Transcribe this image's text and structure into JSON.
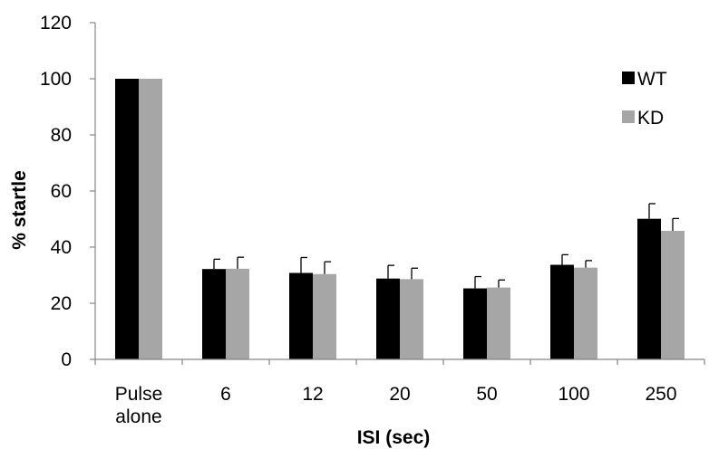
{
  "chart_data": {
    "type": "bar",
    "categories": [
      [
        "Pulse",
        "alone"
      ],
      [
        "6"
      ],
      [
        "12"
      ],
      [
        "20"
      ],
      [
        "50"
      ],
      [
        "100"
      ],
      [
        "250"
      ]
    ],
    "series": [
      {
        "name": "WT",
        "color": "#000000",
        "values": [
          100,
          32.2,
          30.8,
          28.8,
          25.3,
          33.7,
          50.1
        ],
        "errors": [
          0,
          3.5,
          5.5,
          4.7,
          4.2,
          3.6,
          5.4
        ]
      },
      {
        "name": "KD",
        "color": "#a6a6a6",
        "values": [
          100,
          32.3,
          30.4,
          28.6,
          25.6,
          32.7,
          45.8
        ],
        "errors": [
          0,
          4.1,
          4.4,
          3.9,
          2.7,
          2.5,
          4.4
        ]
      }
    ],
    "xlabel": "ISI (sec)",
    "ylabel": "% startle",
    "ylim": [
      0,
      120
    ],
    "yticks": [
      0,
      20,
      40,
      60,
      80,
      100,
      120
    ],
    "grid": false,
    "legend_position": "top-right"
  }
}
